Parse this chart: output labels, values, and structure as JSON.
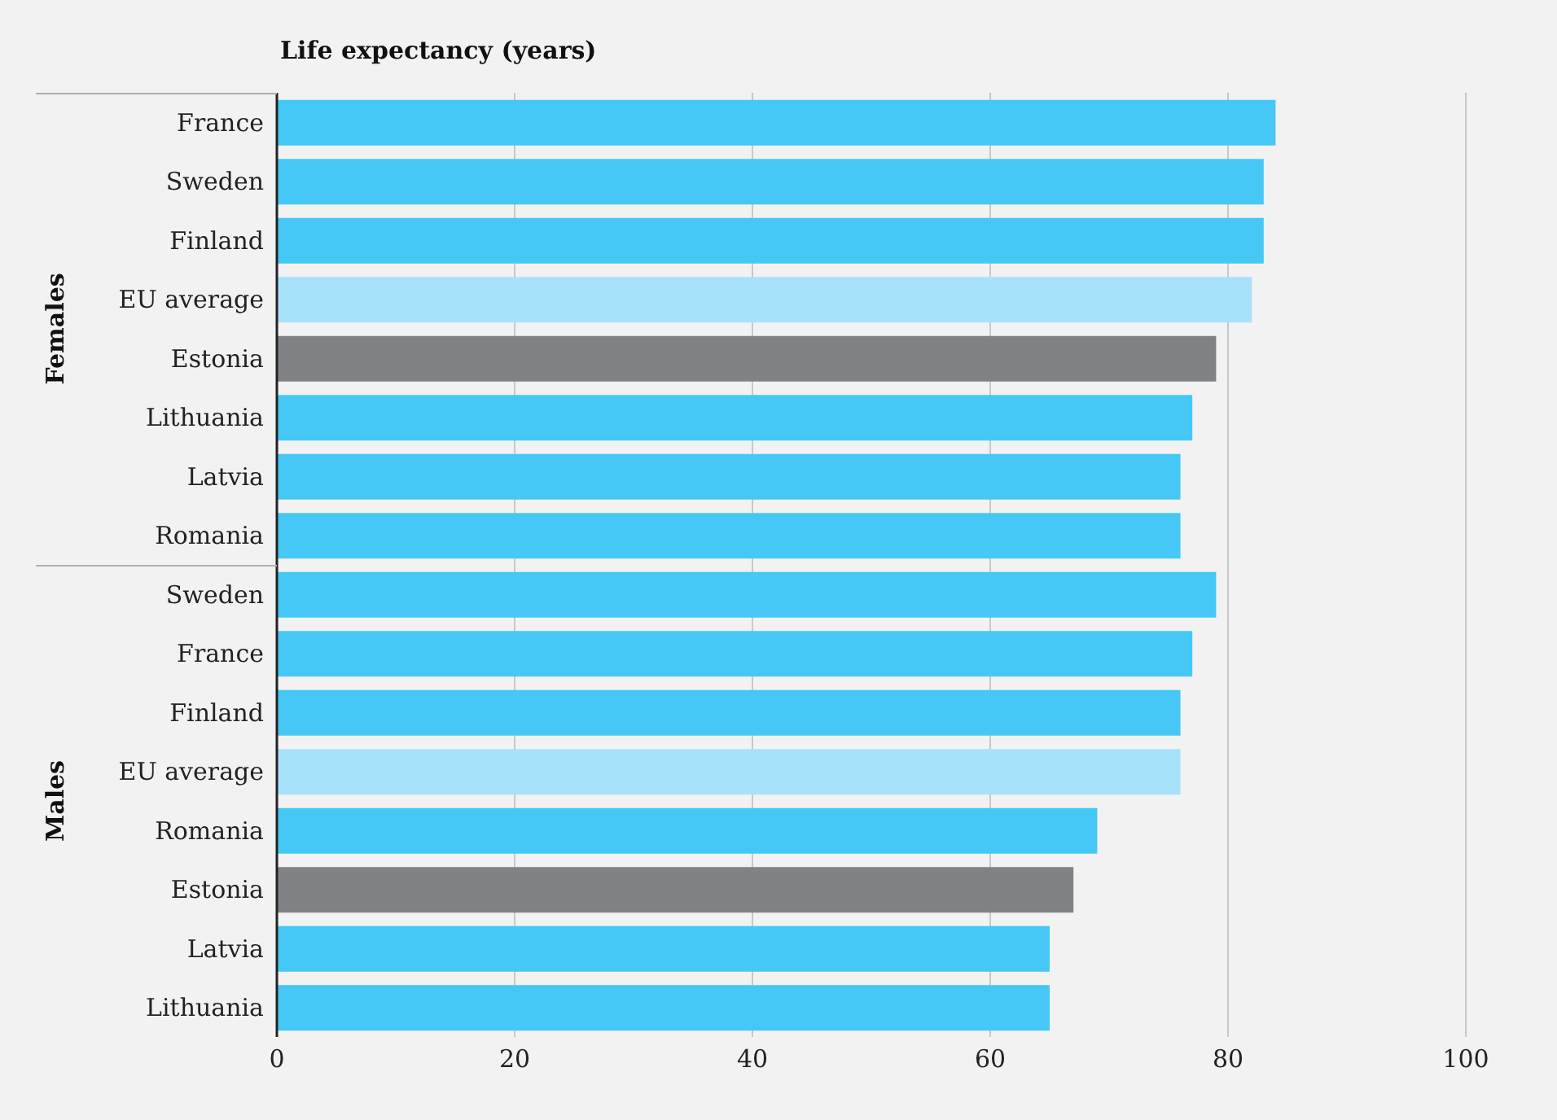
{
  "chart_data": {
    "type": "bar",
    "orientation": "horizontal",
    "title": "Life expectancy (years)",
    "categories": [
      "France",
      "Sweden",
      "Finland",
      "EU average",
      "Estonia",
      "Lithuania",
      "Latvia",
      "Romania",
      "Sweden",
      "France",
      "Finland",
      "EU average",
      "Romania",
      "Estonia",
      "Latvia",
      "Lithuania"
    ],
    "values": [
      84,
      83,
      83,
      82,
      79,
      77,
      76,
      76,
      79,
      77,
      76,
      76,
      69,
      67,
      65,
      65
    ],
    "colors": [
      "#45c8f5",
      "#45c8f5",
      "#45c8f5",
      "#a8e2fa",
      "#808285",
      "#45c8f5",
      "#45c8f5",
      "#45c8f5",
      "#45c8f5",
      "#45c8f5",
      "#45c8f5",
      "#a8e2fa",
      "#45c8f5",
      "#808285",
      "#45c8f5",
      "#45c8f5"
    ],
    "xlim": [
      0,
      100
    ],
    "xticks": [
      0,
      20,
      40,
      60,
      80,
      100
    ],
    "grid": "x",
    "annotations": [
      "Females",
      "Males"
    ]
  }
}
